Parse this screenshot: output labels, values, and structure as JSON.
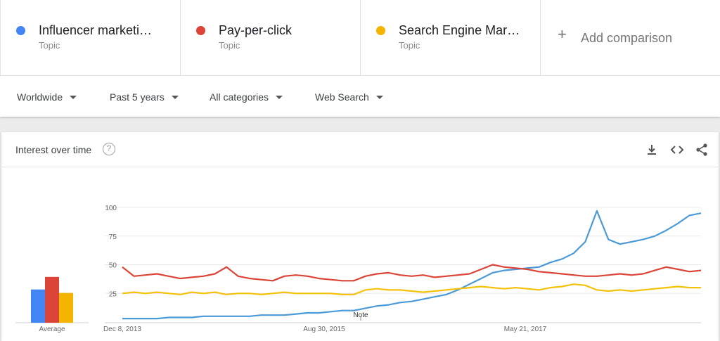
{
  "terms": [
    {
      "name": "Influencer marketi…",
      "type": "Topic",
      "color": "#4285f4"
    },
    {
      "name": "Pay-per-click",
      "type": "Topic",
      "color": "#db4437"
    },
    {
      "name": "Search Engine Mar…",
      "type": "Topic",
      "color": "#f4b400"
    }
  ],
  "add_comparison": {
    "icon": "plus-icon",
    "label": "Add comparison"
  },
  "filters": [
    {
      "label": "Worldwide"
    },
    {
      "label": "Past 5 years"
    },
    {
      "label": "All categories"
    },
    {
      "label": "Web Search"
    }
  ],
  "card": {
    "title": "Interest over time",
    "help_icon": "question-icon",
    "help_text": "?",
    "icons": [
      "download-icon",
      "embed-icon",
      "share-icon"
    ]
  },
  "chart_data": {
    "type": "line",
    "x_ticks": [
      "Dec 8, 2013",
      "Aug 30, 2015",
      "May 21, 2017"
    ],
    "y_ticks": [
      25,
      50,
      75,
      100
    ],
    "ylim": [
      0,
      100
    ],
    "annotation": "Note",
    "average_label": "Average",
    "averages": [
      29,
      40,
      26
    ],
    "series": [
      {
        "name": "Influencer marketi…",
        "color": "#4a9ad8",
        "values": [
          3,
          3,
          3,
          3,
          4,
          4,
          4,
          5,
          5,
          5,
          5,
          5,
          6,
          6,
          6,
          7,
          8,
          8,
          9,
          10,
          10,
          12,
          14,
          15,
          17,
          18,
          20,
          22,
          24,
          28,
          33,
          38,
          43,
          45,
          46,
          47,
          48,
          52,
          55,
          60,
          70,
          97,
          72,
          68,
          70,
          72,
          75,
          80,
          86,
          93,
          95
        ]
      },
      {
        "name": "Pay-per-click",
        "color": "#db4437",
        "values": [
          48,
          40,
          41,
          42,
          40,
          38,
          39,
          40,
          42,
          48,
          40,
          38,
          37,
          36,
          40,
          41,
          40,
          38,
          37,
          36,
          36,
          40,
          42,
          43,
          41,
          40,
          41,
          39,
          40,
          41,
          42,
          46,
          50,
          48,
          47,
          46,
          44,
          43,
          42,
          41,
          40,
          40,
          41,
          42,
          41,
          42,
          45,
          48,
          46,
          44,
          45
        ]
      },
      {
        "name": "Search Engine Mar…",
        "color": "#f4c20d",
        "values": [
          25,
          26,
          25,
          26,
          25,
          24,
          26,
          25,
          26,
          24,
          25,
          25,
          24,
          25,
          26,
          25,
          25,
          25,
          25,
          24,
          24,
          28,
          29,
          28,
          28,
          27,
          26,
          27,
          28,
          29,
          30,
          31,
          30,
          29,
          30,
          29,
          28,
          30,
          31,
          33,
          32,
          28,
          27,
          28,
          27,
          28,
          29,
          30,
          31,
          30,
          30
        ]
      }
    ]
  }
}
